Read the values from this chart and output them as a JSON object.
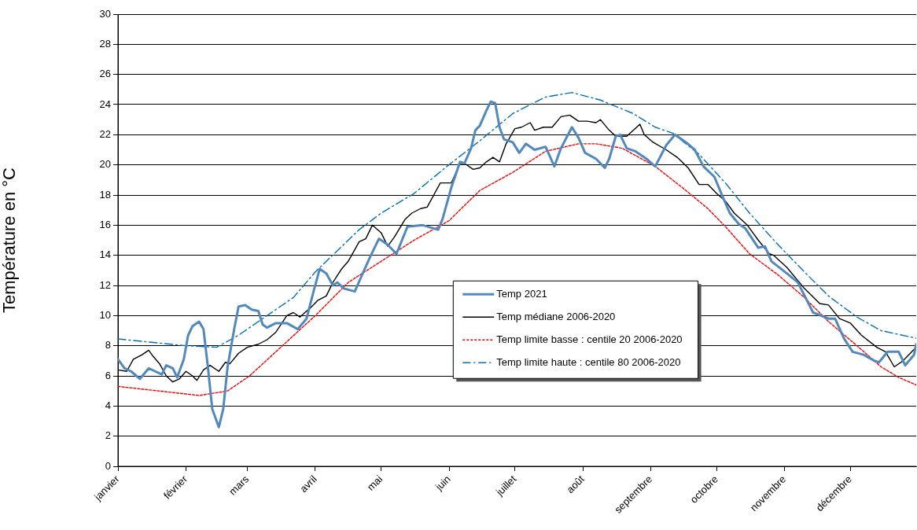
{
  "chart_data": {
    "type": "line",
    "ylabel": "Température en °C",
    "xlim": [
      "--01-01",
      "--12-31"
    ],
    "xticks": [
      {
        "value": "--01-01",
        "label": "janvier"
      },
      {
        "value": "--02-01",
        "label": "février"
      },
      {
        "value": "--03-01",
        "label": "mars"
      },
      {
        "value": "--04-01",
        "label": "avril"
      },
      {
        "value": "--05-01",
        "label": "mai"
      },
      {
        "value": "--06-01",
        "label": "juin"
      },
      {
        "value": "--07-01",
        "label": "juillet"
      },
      {
        "value": "--08-01",
        "label": "août"
      },
      {
        "value": "--09-01",
        "label": "septembre"
      },
      {
        "value": "--10-01",
        "label": "octobre"
      },
      {
        "value": "--11-01",
        "label": "novembre"
      },
      {
        "value": "--12-01",
        "label": "décembre"
      }
    ],
    "ylim": [
      0,
      30
    ],
    "yticks": [
      0,
      2,
      4,
      6,
      8,
      10,
      12,
      14,
      16,
      18,
      20,
      22,
      24,
      26,
      28,
      30
    ],
    "grid": "y",
    "legend": "center",
    "marker": "none",
    "series": [
      {
        "name": "Temp 2021",
        "color": "#4f89c0",
        "line_style": "solid",
        "x": [
          "--01-01",
          "--01-04",
          "--01-07",
          "--01-11",
          "--01-15",
          "--01-18",
          "--01-21",
          "--01-23",
          "--01-26",
          "--01-28",
          "--01-31",
          "--02-02",
          "--02-04",
          "--02-07",
          "--02-09",
          "--02-11",
          "--02-13",
          "--02-16",
          "--02-18",
          "--02-20",
          "--02-23",
          "--02-25",
          "--02-28",
          "--03-03",
          "--03-06",
          "--03-08",
          "--03-10",
          "--03-14",
          "--03-19",
          "--03-24",
          "--03-28",
          "--03-31",
          "--04-03",
          "--04-06",
          "--04-09",
          "--04-11",
          "--04-14",
          "--04-19",
          "--04-22",
          "--04-26",
          "--04-30",
          "--05-04",
          "--05-08",
          "--05-13",
          "--05-20",
          "--05-27",
          "--05-29",
          "--06-02",
          "--06-06",
          "--06-08",
          "--06-11",
          "--06-13",
          "--06-15",
          "--06-18",
          "--06-20",
          "--06-22",
          "--06-24",
          "--06-26",
          "--06-30",
          "--07-03",
          "--07-06",
          "--07-10",
          "--07-15",
          "--07-19",
          "--07-22",
          "--07-27",
          "--07-30",
          "--08-02",
          "--08-07",
          "--08-11",
          "--08-13",
          "--08-16",
          "--08-18",
          "--08-21",
          "--08-25",
          "--08-30",
          "--09-03",
          "--09-08",
          "--09-12",
          "--09-17",
          "--09-21",
          "--09-25",
          "--09-30",
          "--10-04",
          "--10-07",
          "--10-11",
          "--10-14",
          "--10-20",
          "--10-23",
          "--10-26",
          "--11-02",
          "--11-07",
          "--11-14",
          "--11-21",
          "--11-24",
          "--11-28",
          "--12-02",
          "--12-07",
          "--12-12",
          "--12-14",
          "--12-18",
          "--12-23",
          "--12-26",
          "--12-30",
          "--12-31"
        ],
        "values": [
          7.1,
          6.5,
          6.3,
          5.8,
          6.5,
          6.3,
          6.1,
          6.7,
          6.5,
          5.9,
          7.1,
          8.7,
          9.3,
          9.6,
          9.1,
          6.6,
          3.8,
          2.6,
          3.8,
          6.6,
          9.1,
          10.6,
          10.7,
          10.4,
          10.3,
          9.4,
          9.2,
          9.5,
          9.5,
          9.1,
          9.8,
          11.5,
          13.1,
          12.8,
          12.0,
          12.2,
          11.8,
          11.6,
          12.6,
          13.9,
          15.1,
          14.7,
          14.1,
          15.9,
          16.0,
          15.7,
          16.4,
          18.5,
          20.2,
          20.1,
          21.1,
          22.3,
          22.6,
          23.6,
          24.2,
          24.1,
          22.5,
          21.7,
          21.5,
          20.8,
          21.4,
          21.0,
          21.2,
          19.9,
          21.1,
          22.5,
          21.8,
          20.8,
          20.4,
          19.8,
          20.4,
          21.9,
          22.0,
          21.1,
          20.9,
          20.4,
          19.9,
          21.3,
          22.0,
          21.5,
          21.0,
          19.9,
          19.2,
          17.8,
          16.8,
          16.1,
          15.8,
          14.5,
          14.6,
          13.6,
          12.8,
          12.2,
          10.2,
          9.8,
          9.8,
          8.5,
          7.6,
          7.4,
          7.0,
          6.9,
          7.6,
          7.6,
          6.7,
          7.4,
          8.1
        ]
      },
      {
        "name": "Temp médiane 2006-2020",
        "color": "#000000",
        "line_style": "solid",
        "x": [
          "--01-01",
          "--01-05",
          "--01-08",
          "--01-12",
          "--01-15",
          "--01-17",
          "--01-20",
          "--01-23",
          "--01-26",
          "--01-29",
          "--02-01",
          "--02-04",
          "--02-06",
          "--02-09",
          "--02-12",
          "--02-16",
          "--02-19",
          "--02-21",
          "--02-25",
          "--03-01",
          "--03-06",
          "--03-10",
          "--03-14",
          "--03-19",
          "--03-22",
          "--03-25",
          "--03-28",
          "--03-29",
          "--04-02",
          "--04-06",
          "--04-09",
          "--04-13",
          "--04-16",
          "--04-21",
          "--04-24",
          "--04-27",
          "--05-01",
          "--05-04",
          "--05-07",
          "--05-12",
          "--05-15",
          "--05-19",
          "--05-22",
          "--05-25",
          "--05-28",
          "--06-02",
          "--06-06",
          "--06-08",
          "--06-12",
          "--06-15",
          "--06-18",
          "--06-21",
          "--06-24",
          "--06-27",
          "--07-01",
          "--07-04",
          "--07-08",
          "--07-10",
          "--07-14",
          "--07-18",
          "--07-22",
          "--07-26",
          "--07-30",
          "--08-03",
          "--08-07",
          "--08-09",
          "--08-13",
          "--08-16",
          "--08-21",
          "--08-27",
          "--08-29",
          "--09-02",
          "--09-08",
          "--09-13",
          "--09-18",
          "--09-23",
          "--09-27",
          "--10-01",
          "--10-05",
          "--10-09",
          "--10-15",
          "--10-20",
          "--10-25",
          "--10-27",
          "--11-02",
          "--11-10",
          "--11-17",
          "--11-21",
          "--11-26",
          "--12-01",
          "--12-06",
          "--12-13",
          "--12-17",
          "--12-21",
          "--12-25",
          "--12-29",
          "--12-31"
        ],
        "values": [
          6.4,
          6.3,
          7.1,
          7.4,
          7.7,
          7.3,
          6.8,
          6.0,
          5.6,
          5.8,
          6.3,
          6.0,
          5.7,
          6.4,
          6.7,
          6.3,
          6.9,
          6.8,
          7.5,
          7.9,
          8.1,
          8.4,
          8.9,
          10.0,
          10.2,
          9.9,
          10.3,
          10.4,
          11.0,
          11.3,
          12.2,
          13.1,
          13.6,
          14.9,
          15.1,
          16.0,
          15.5,
          14.6,
          15.2,
          16.4,
          16.8,
          17.1,
          17.2,
          18.0,
          18.8,
          18.8,
          20.1,
          20.1,
          19.7,
          19.8,
          20.2,
          20.5,
          20.2,
          21.4,
          22.4,
          22.5,
          22.8,
          22.3,
          22.5,
          22.5,
          23.2,
          23.3,
          22.9,
          22.9,
          22.8,
          23.0,
          22.3,
          21.9,
          21.9,
          22.7,
          22.0,
          21.5,
          21.0,
          20.5,
          19.8,
          18.7,
          18.7,
          18.1,
          17.6,
          16.8,
          16.0,
          15.0,
          14.1,
          14.0,
          13.2,
          11.8,
          10.8,
          10.7,
          9.8,
          9.5,
          8.7,
          7.9,
          7.6,
          6.6,
          7.0,
          7.6,
          7.9
        ]
      },
      {
        "name": "Temp limite basse : centile 20 2006-2020",
        "color": "#ff0000",
        "line_style": "dotted",
        "x": [
          "--01-01",
          "--02-01",
          "--02-07",
          "--02-20",
          "--03-02",
          "--03-17",
          "--04-01",
          "--04-16",
          "--05-01",
          "--05-16",
          "--06-01",
          "--06-15",
          "--06-30",
          "--07-15",
          "--07-30",
          "--08-07",
          "--08-19",
          "--09-03",
          "--09-17",
          "--09-27",
          "--10-05",
          "--10-16",
          "--10-29",
          "--11-10",
          "--11-21",
          "--12-04",
          "--12-15",
          "--12-23",
          "--12-31"
        ],
        "values": [
          5.3,
          4.8,
          4.7,
          5.0,
          6.0,
          8.0,
          10.0,
          12.2,
          13.6,
          15.0,
          16.3,
          18.3,
          19.5,
          20.9,
          21.4,
          21.4,
          21.1,
          19.9,
          18.3,
          17.1,
          15.9,
          14.1,
          12.7,
          11.2,
          9.6,
          8.0,
          6.6,
          5.9,
          5.4
        ]
      },
      {
        "name": "Temp limite haute : centile 80 2006-2020",
        "color": "#0070c0",
        "line_style": "dashed",
        "x": [
          "--01-01",
          "--02-01",
          "--02-15",
          "--02-25",
          "--03-07",
          "--03-22",
          "--04-01",
          "--04-11",
          "--04-21",
          "--05-01",
          "--05-16",
          "--05-31",
          "--06-15",
          "--06-30",
          "--07-15",
          "--07-27",
          "--08-09",
          "--08-24",
          "--09-03",
          "--09-11",
          "--09-23",
          "--10-05",
          "--10-16",
          "--10-29",
          "--11-10",
          "--11-21",
          "--12-04",
          "--12-15",
          "--12-31"
        ],
        "values": [
          8.45,
          8.0,
          7.9,
          8.7,
          9.7,
          11.2,
          12.9,
          14.3,
          15.7,
          16.8,
          18.1,
          19.9,
          21.6,
          23.4,
          24.5,
          24.8,
          24.3,
          23.4,
          22.5,
          22.1,
          20.7,
          18.8,
          16.8,
          14.7,
          12.9,
          11.3,
          9.9,
          9.0,
          8.5
        ]
      }
    ]
  }
}
